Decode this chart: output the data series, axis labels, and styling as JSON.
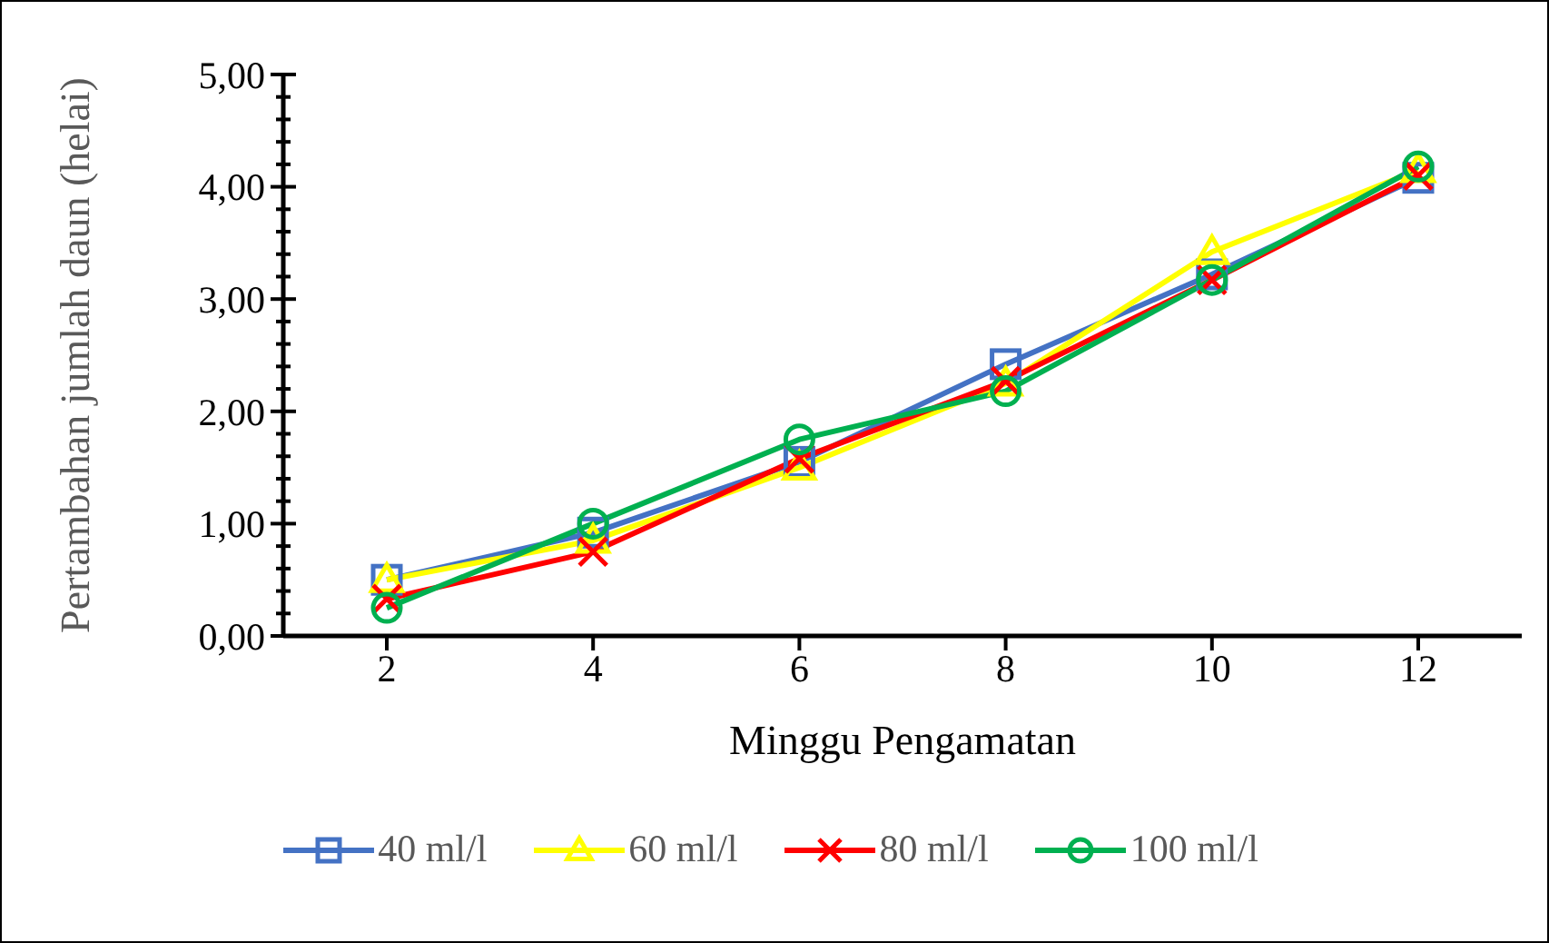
{
  "chart_data": {
    "type": "line",
    "xlabel": "Minggu Pengamatan",
    "ylabel": "Pertambahan jumlah daun (helai)",
    "categories": [
      "2",
      "4",
      "6",
      "8",
      "10",
      "12"
    ],
    "ylim": [
      0,
      5
    ],
    "yticks": [
      {
        "value": 0,
        "label": "0,00"
      },
      {
        "value": 0.2,
        "label": null
      },
      {
        "value": 0.4,
        "label": null
      },
      {
        "value": 0.6,
        "label": null
      },
      {
        "value": 0.8,
        "label": null
      },
      {
        "value": 1,
        "label": "1,00"
      },
      {
        "value": 1.2,
        "label": null
      },
      {
        "value": 1.4,
        "label": null
      },
      {
        "value": 1.6,
        "label": null
      },
      {
        "value": 1.8,
        "label": null
      },
      {
        "value": 2,
        "label": "2,00"
      },
      {
        "value": 2.2,
        "label": null
      },
      {
        "value": 2.4,
        "label": null
      },
      {
        "value": 2.6,
        "label": null
      },
      {
        "value": 2.8,
        "label": null
      },
      {
        "value": 3,
        "label": "3,00"
      },
      {
        "value": 3.2,
        "label": null
      },
      {
        "value": 3.4,
        "label": null
      },
      {
        "value": 3.6,
        "label": null
      },
      {
        "value": 3.8,
        "label": null
      },
      {
        "value": 4,
        "label": "4,00"
      },
      {
        "value": 4.2,
        "label": null
      },
      {
        "value": 4.4,
        "label": null
      },
      {
        "value": 4.6,
        "label": null
      },
      {
        "value": 4.8,
        "label": null
      },
      {
        "value": 5,
        "label": "5,00"
      }
    ],
    "legend": "bottom",
    "line_style": "solid",
    "series": [
      {
        "name": "40 ml/l",
        "color": "#4472c4",
        "marker": "square",
        "values": [
          0.5,
          0.92,
          1.55,
          2.42,
          3.22,
          4.08
        ]
      },
      {
        "name": "60 ml/l",
        "color": "#ffff00",
        "marker": "triangle",
        "values": [
          0.5,
          0.85,
          1.5,
          2.25,
          3.42,
          4.15
        ]
      },
      {
        "name": "80 ml/l",
        "color": "#ff0000",
        "marker": "cross",
        "values": [
          0.33,
          0.75,
          1.58,
          2.27,
          3.17,
          4.1
        ]
      },
      {
        "name": "100 ml/l",
        "color": "#00b050",
        "marker": "circle",
        "values": [
          0.25,
          1.0,
          1.75,
          2.18,
          3.17,
          4.18
        ]
      }
    ]
  }
}
